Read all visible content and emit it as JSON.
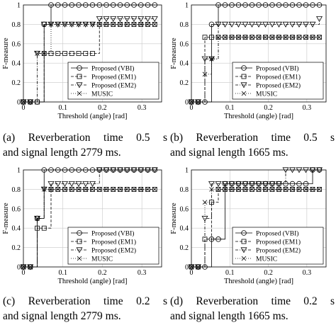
{
  "chart_data": [
    {
      "type": "line",
      "caption_line1": "(a)  Reverberation  time  0.5 s",
      "caption_line2": "and signal length 2779 ms.",
      "xlabel": "Threshold (angle) [rad]",
      "ylabel": "F-measure",
      "xlim": [
        0,
        0.35
      ],
      "ylim": [
        0,
        1
      ],
      "xticks": [
        "0",
        "0.1",
        "0.2",
        "0.3"
      ],
      "yticks": [
        "0",
        "0.2",
        "0.4",
        "0.6",
        "0.8",
        "1"
      ],
      "grid": true,
      "legend_position": "bottom-right",
      "series": [
        {
          "name": "Proposed (VBI)",
          "marker": "circle",
          "dash": "solid",
          "x": [
            0,
            0.0175,
            0.035,
            0.0525,
            0.07,
            0.0875,
            0.105,
            0.1225,
            0.14,
            0.1575,
            0.175,
            0.1925,
            0.21,
            0.2275,
            0.245,
            0.2625,
            0.28,
            0.2975,
            0.315,
            0.3325
          ],
          "y": [
            0,
            0,
            0,
            0.8,
            1,
            1,
            1,
            1,
            1,
            1,
            1,
            1,
            1,
            1,
            1,
            1,
            1,
            1,
            1,
            1
          ]
        },
        {
          "name": "Proposed (EM1)",
          "marker": "square",
          "dash": "dashed",
          "x": [
            0,
            0.0175,
            0.035,
            0.0525,
            0.07,
            0.0875,
            0.105,
            0.1225,
            0.14,
            0.1575,
            0.175,
            0.1925,
            0.21,
            0.2275,
            0.245,
            0.2625,
            0.28,
            0.2975,
            0.315,
            0.3325
          ],
          "y": [
            0,
            0,
            0,
            0.5,
            0.5,
            0.5,
            0.5,
            0.5,
            0.5,
            0.5,
            0.5,
            0.8,
            0.8,
            0.8,
            0.8,
            0.8,
            0.8,
            0.8,
            0.8,
            0.8
          ]
        },
        {
          "name": "Proposed (EM2)",
          "marker": "triangle-down",
          "dash": "dashdot",
          "x": [
            0,
            0.0175,
            0.035,
            0.0525,
            0.07,
            0.0875,
            0.105,
            0.1225,
            0.14,
            0.1575,
            0.175,
            0.1925,
            0.21,
            0.2275,
            0.245,
            0.2625,
            0.28,
            0.2975,
            0.315,
            0.3325
          ],
          "y": [
            0,
            0,
            0.5,
            0.8,
            0.8,
            0.8,
            0.8,
            0.8,
            0.8,
            0.8,
            0.8,
            0.857,
            0.857,
            0.857,
            0.857,
            0.857,
            0.857,
            0.857,
            0.857,
            0.857
          ]
        },
        {
          "name": "MUSIC",
          "marker": "x",
          "dash": "dotted",
          "x": [
            0,
            0.0175,
            0.035,
            0.0525,
            0.07,
            0.0875,
            0.105,
            0.1225,
            0.14,
            0.1575,
            0.175,
            0.1925,
            0.21,
            0.2275,
            0.245,
            0.2625,
            0.28,
            0.2975,
            0.315,
            0.3325
          ],
          "y": [
            0,
            0,
            0.5,
            0.5,
            0.8,
            0.8,
            0.8,
            0.8,
            0.8,
            0.8,
            0.8,
            0.8,
            0.8,
            0.8,
            0.8,
            0.8,
            0.8,
            0.8,
            0.8,
            0.8
          ]
        }
      ]
    },
    {
      "type": "line",
      "caption_line1": "(b)  Reverberation  time  0.5 s",
      "caption_line2": "and signal length 1665 ms.",
      "xlabel": "Threshold (angle) [rad]",
      "ylabel": "F-measure",
      "xlim": [
        0,
        0.35
      ],
      "ylim": [
        0,
        1
      ],
      "xticks": [
        "0",
        "0.1",
        "0.2",
        "0.3"
      ],
      "yticks": [
        "0",
        "0.2",
        "0.4",
        "0.6",
        "0.8",
        "1"
      ],
      "grid": true,
      "legend_position": "bottom-right",
      "series": [
        {
          "name": "Proposed (VBI)",
          "marker": "circle",
          "dash": "solid",
          "x": [
            0,
            0.0175,
            0.035,
            0.0525,
            0.07,
            0.0875,
            0.105,
            0.1225,
            0.14,
            0.1575,
            0.175,
            0.1925,
            0.21,
            0.2275,
            0.245,
            0.2625,
            0.28,
            0.2975,
            0.315,
            0.3325
          ],
          "y": [
            0,
            0,
            0,
            0.8,
            1,
            1,
            1,
            1,
            1,
            1,
            1,
            1,
            1,
            1,
            1,
            1,
            1,
            1,
            1,
            1
          ]
        },
        {
          "name": "Proposed (EM1)",
          "marker": "square",
          "dash": "dashed",
          "x": [
            0,
            0.0175,
            0.035,
            0.0525,
            0.07,
            0.0875,
            0.105,
            0.1225,
            0.14,
            0.1575,
            0.175,
            0.1925,
            0.21,
            0.2275,
            0.245,
            0.2625,
            0.28,
            0.2975,
            0.315,
            0.3325
          ],
          "y": [
            0,
            0,
            0.667,
            0.667,
            0.667,
            0.667,
            0.667,
            0.667,
            0.667,
            0.667,
            0.667,
            0.667,
            0.667,
            0.667,
            0.667,
            0.667,
            0.667,
            0.667,
            0.667,
            0.667
          ]
        },
        {
          "name": "Proposed (EM2)",
          "marker": "triangle-down",
          "dash": "dashdot",
          "x": [
            0,
            0.0175,
            0.035,
            0.0525,
            0.07,
            0.0875,
            0.105,
            0.1225,
            0.14,
            0.1575,
            0.175,
            0.1925,
            0.21,
            0.2275,
            0.245,
            0.2625,
            0.28,
            0.2975,
            0.315,
            0.3325
          ],
          "y": [
            0,
            0,
            0.444,
            0.444,
            0.8,
            0.8,
            0.8,
            0.8,
            0.8,
            0.8,
            0.8,
            0.8,
            0.8,
            0.8,
            0.8,
            0.8,
            0.8,
            0.8,
            0.8,
            0.857
          ]
        },
        {
          "name": "MUSIC",
          "marker": "x",
          "dash": "dotted",
          "x": [
            0,
            0.0175,
            0.035,
            0.0525,
            0.07,
            0.0875,
            0.105,
            0.1225,
            0.14,
            0.1575,
            0.175,
            0.1925,
            0.21,
            0.2275,
            0.245,
            0.2625,
            0.28,
            0.2975,
            0.315,
            0.3325
          ],
          "y": [
            0,
            0,
            0.286,
            0.444,
            0.667,
            0.667,
            0.667,
            0.667,
            0.667,
            0.667,
            0.667,
            0.667,
            0.667,
            0.667,
            0.667,
            0.667,
            0.667,
            0.667,
            0.667,
            0.667
          ]
        }
      ]
    },
    {
      "type": "line",
      "caption_line1": "(c)  Reverberation  time  0.2 s",
      "caption_line2": "and signal length 2779 ms.",
      "xlabel": "Threshold (angle) [rad]",
      "ylabel": "F-measure",
      "xlim": [
        0,
        0.35
      ],
      "ylim": [
        0,
        1
      ],
      "xticks": [
        "0",
        "0.1",
        "0.2",
        "0.3"
      ],
      "yticks": [
        "0",
        "0.2",
        "0.4",
        "0.6",
        "0.8",
        "1"
      ],
      "grid": true,
      "legend_position": "bottom-right",
      "series": [
        {
          "name": "Proposed (VBI)",
          "marker": "circle",
          "dash": "solid",
          "x": [
            0,
            0.0175,
            0.035,
            0.0525,
            0.07,
            0.0875,
            0.105,
            0.1225,
            0.14,
            0.1575,
            0.175,
            0.1925,
            0.21,
            0.2275,
            0.245,
            0.2625,
            0.28,
            0.2975,
            0.315,
            0.3325
          ],
          "y": [
            0,
            0,
            0.5,
            1,
            1,
            1,
            1,
            1,
            1,
            1,
            1,
            1,
            1,
            1,
            1,
            1,
            1,
            1,
            1,
            1
          ]
        },
        {
          "name": "Proposed (EM1)",
          "marker": "square",
          "dash": "dashed",
          "x": [
            0,
            0.0175,
            0.035,
            0.0525,
            0.07,
            0.0875,
            0.105,
            0.1225,
            0.14,
            0.1575,
            0.175,
            0.1925,
            0.21,
            0.2275,
            0.245,
            0.2625,
            0.28,
            0.2975,
            0.315,
            0.3325
          ],
          "y": [
            0,
            0,
            0.4,
            0.4,
            0.8,
            0.8,
            0.8,
            0.8,
            0.8,
            0.8,
            0.8,
            0.8,
            0.8,
            0.8,
            0.8,
            0.8,
            0.8,
            0.8,
            0.8,
            0.8
          ]
        },
        {
          "name": "Proposed (EM2)",
          "marker": "triangle-down",
          "dash": "dashdot",
          "x": [
            0,
            0.0175,
            0.035,
            0.0525,
            0.07,
            0.0875,
            0.105,
            0.1225,
            0.14,
            0.1575,
            0.175,
            0.1925,
            0.21,
            0.2275,
            0.245,
            0.2625,
            0.28,
            0.2975,
            0.315,
            0.3325
          ],
          "y": [
            0,
            0,
            0.5,
            0.8,
            0.857,
            0.857,
            0.857,
            0.857,
            0.857,
            0.857,
            0.857,
            1,
            1,
            1,
            1,
            1,
            1,
            1,
            1,
            1
          ]
        },
        {
          "name": "MUSIC",
          "marker": "x",
          "dash": "dotted",
          "x": [
            0,
            0.0175,
            0.035,
            0.0525,
            0.07,
            0.0875,
            0.105,
            0.1225,
            0.14,
            0.1575,
            0.175,
            0.1925,
            0.21,
            0.2275,
            0.245,
            0.2625,
            0.28,
            0.2975,
            0.315,
            0.3325
          ],
          "y": [
            0,
            0,
            0.5,
            0.8,
            0.8,
            0.8,
            0.8,
            0.8,
            0.8,
            0.8,
            0.8,
            0.8,
            0.8,
            0.8,
            0.8,
            0.8,
            0.8,
            0.8,
            0.8,
            0.8
          ]
        }
      ]
    },
    {
      "type": "line",
      "caption_line1": "(d)  Reverberation  time  0.2 s",
      "caption_line2": "and signal length 1665 ms.",
      "xlabel": "Threshold (angle) [rad]",
      "ylabel": "F-measure",
      "xlim": [
        0,
        0.35
      ],
      "ylim": [
        0,
        1
      ],
      "xticks": [
        "0",
        "0.1",
        "0.2",
        "0.3"
      ],
      "yticks": [
        "0",
        "0.2",
        "0.4",
        "0.6",
        "0.8",
        "1"
      ],
      "grid": true,
      "legend_position": "bottom-right",
      "series": [
        {
          "name": "Proposed (VBI)",
          "marker": "circle",
          "dash": "solid",
          "x": [
            0,
            0.0175,
            0.035,
            0.0525,
            0.07,
            0.0875,
            0.105,
            0.1225,
            0.14,
            0.1575,
            0.175,
            0.1925,
            0.21,
            0.2275,
            0.245,
            0.2625,
            0.28,
            0.2975,
            0.315,
            0.3325
          ],
          "y": [
            0,
            0,
            0,
            0.286,
            0.286,
            0.857,
            0.857,
            0.857,
            0.857,
            0.857,
            0.857,
            0.857,
            0.857,
            0.857,
            0.857,
            0.857,
            0.857,
            0.857,
            1,
            1
          ]
        },
        {
          "name": "Proposed (EM1)",
          "marker": "square",
          "dash": "dashed",
          "x": [
            0,
            0.0175,
            0.035,
            0.0525,
            0.07,
            0.0875,
            0.105,
            0.1225,
            0.14,
            0.1575,
            0.175,
            0.1925,
            0.21,
            0.2275,
            0.245,
            0.2625,
            0.28,
            0.2975,
            0.315,
            0.3325
          ],
          "y": [
            0,
            0,
            0.286,
            0.667,
            0.8,
            0.8,
            0.8,
            0.8,
            0.8,
            0.8,
            0.8,
            0.8,
            0.8,
            0.8,
            0.8,
            0.8,
            0.8,
            0.8,
            0.8,
            0.8
          ]
        },
        {
          "name": "Proposed (EM2)",
          "marker": "triangle-down",
          "dash": "dashdot",
          "x": [
            0,
            0.0175,
            0.035,
            0.0525,
            0.07,
            0.0875,
            0.105,
            0.1225,
            0.14,
            0.1575,
            0.175,
            0.1925,
            0.21,
            0.2275,
            0.245,
            0.2625,
            0.28,
            0.2975,
            0.315,
            0.3325
          ],
          "y": [
            0,
            0,
            0.5,
            0.857,
            0.857,
            0.857,
            0.857,
            0.857,
            0.857,
            0.857,
            0.857,
            0.857,
            0.857,
            0.857,
            1,
            1,
            1,
            1,
            1,
            1
          ]
        },
        {
          "name": "MUSIC",
          "marker": "x",
          "dash": "dotted",
          "x": [
            0,
            0.0175,
            0.035,
            0.0525,
            0.07,
            0.0875,
            0.105,
            0.1225,
            0.14,
            0.1575,
            0.175,
            0.1925,
            0.21,
            0.2275,
            0.245,
            0.2625,
            0.28,
            0.2975,
            0.315,
            0.3325
          ],
          "y": [
            0,
            0,
            0.667,
            0.8,
            0.8,
            0.8,
            0.8,
            0.8,
            0.8,
            0.8,
            0.8,
            0.8,
            0.8,
            0.8,
            0.8,
            0.8,
            0.8,
            0.8,
            0.8,
            0.8
          ]
        }
      ]
    }
  ]
}
